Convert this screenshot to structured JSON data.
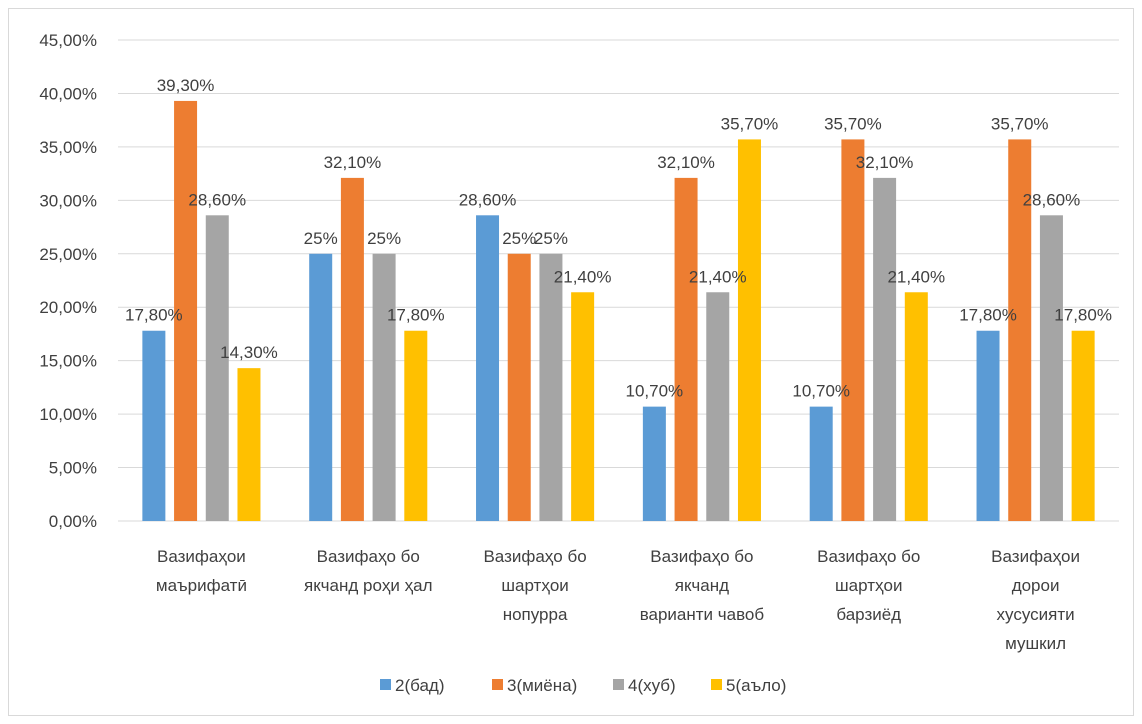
{
  "chart_data": {
    "type": "bar",
    "categories": [
      [
        "Вазифаҳои",
        "маърифатӣ"
      ],
      [
        "Вазифаҳо бо",
        "якчанд роҳи ҳал"
      ],
      [
        "Вазифаҳо бо",
        "шартҳои",
        "нопурра"
      ],
      [
        "Вазифаҳо бо",
        "якчанд",
        "варианти чавоб"
      ],
      [
        "Вазифаҳо бо",
        "шартҳои",
        "барзиёд"
      ],
      [
        "Вазифаҳои",
        "дорои",
        "хусусияти",
        "мушкил"
      ]
    ],
    "series": [
      {
        "name": "2(бад)",
        "color": "#5b9bd5",
        "values": [
          17.8,
          25,
          28.6,
          10.7,
          10.7,
          17.8
        ],
        "labels": [
          "17,80%",
          "25%",
          "28,60%",
          "10,70%",
          "10,70%",
          "17,80%"
        ]
      },
      {
        "name": "3(миёна)",
        "color": "#ed7d31",
        "values": [
          39.3,
          32.1,
          25,
          32.1,
          35.7,
          35.7
        ],
        "labels": [
          "39,30%",
          "32,10%",
          "25%",
          "32,10%",
          "35,70%",
          "35,70%"
        ]
      },
      {
        "name": "4(хуб)",
        "color": "#a5a5a5",
        "values": [
          28.6,
          25,
          25,
          21.4,
          32.1,
          28.6
        ],
        "labels": [
          "28,60%",
          "25%",
          "25%",
          "21,40%",
          "32,10%",
          "28,60%"
        ]
      },
      {
        "name": "5(аъло)",
        "color": "#ffc000",
        "values": [
          14.3,
          17.8,
          21.4,
          35.7,
          21.4,
          17.8
        ],
        "labels": [
          "14,30%",
          "17,80%",
          "21,40%",
          "35,70%",
          "21,40%",
          "17,80%"
        ]
      }
    ],
    "y_ticks": [
      "0,00%",
      "5,00%",
      "10,00%",
      "15,00%",
      "20,00%",
      "25,00%",
      "30,00%",
      "35,00%",
      "40,00%",
      "45,00%"
    ],
    "ylim": [
      0,
      45
    ],
    "grid": true,
    "legend": "bottom",
    "title": "",
    "xlabel": "",
    "ylabel": ""
  }
}
